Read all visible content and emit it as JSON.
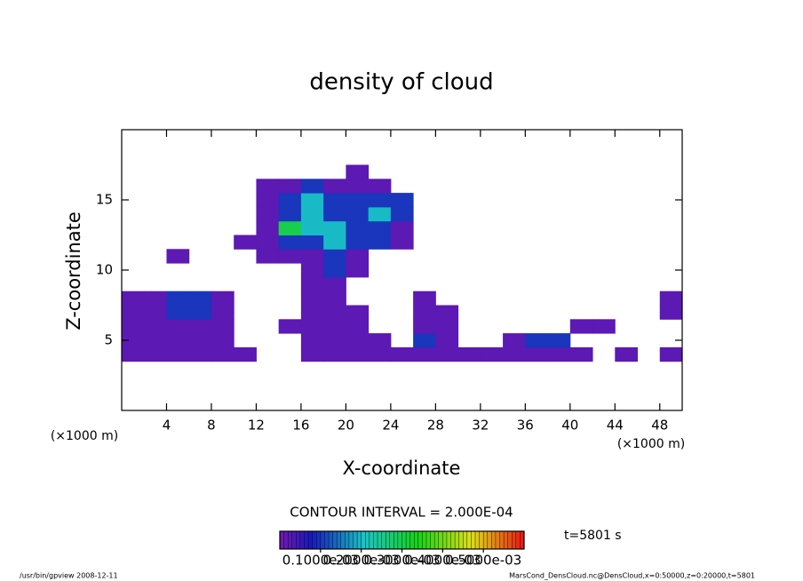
{
  "chart_data": {
    "type": "contour",
    "title": "density of cloud",
    "xlabel": "X-coordinate",
    "ylabel": "Z-coordinate",
    "xlabel_unit": "(×1000 m)",
    "ylabel_unit": "(×1000 m)",
    "xlim": [
      0,
      50
    ],
    "ylim": [
      0,
      20
    ],
    "xticks": [
      4,
      8,
      12,
      16,
      20,
      24,
      28,
      32,
      36,
      40,
      44,
      48
    ],
    "yticks": [
      5,
      10,
      15
    ],
    "colormap": "rainbow",
    "x": [
      1,
      3,
      5,
      7,
      9,
      11,
      13,
      15,
      17,
      19,
      21,
      23,
      25,
      27,
      29,
      31,
      33,
      35,
      37,
      39,
      41,
      43,
      45,
      47,
      49
    ],
    "y": [
      4,
      5,
      6,
      7,
      8,
      9,
      10,
      11,
      12,
      13,
      14,
      15,
      16,
      17
    ],
    "z": [
      [
        2e-05,
        2e-05,
        2e-05,
        2e-05,
        2e-05,
        2e-05,
        0,
        0,
        2e-05,
        2e-05,
        2e-05,
        2e-05,
        2e-05,
        2e-05,
        2e-05,
        2e-05,
        2e-05,
        2e-05,
        2e-05,
        2e-05,
        2e-05,
        0,
        2e-05,
        0,
        2e-05
      ],
      [
        2e-05,
        2e-05,
        2e-05,
        2e-05,
        2e-05,
        0,
        0,
        0,
        2e-05,
        2e-05,
        2e-05,
        2e-05,
        0,
        0.0001,
        2e-05,
        0,
        0,
        2e-05,
        0.0001,
        0.0001,
        0,
        0,
        0,
        0,
        0
      ],
      [
        2e-05,
        2e-05,
        2e-05,
        2e-05,
        2e-05,
        0,
        0,
        2e-05,
        2e-05,
        2e-05,
        2e-05,
        0,
        0,
        2e-05,
        2e-05,
        0,
        0,
        0,
        0,
        0,
        2e-05,
        2e-05,
        0,
        0,
        0
      ],
      [
        2e-05,
        2e-05,
        0.0001,
        0.0001,
        2e-05,
        0,
        0,
        0,
        2e-05,
        2e-05,
        2e-05,
        0,
        0,
        2e-05,
        2e-05,
        0,
        0,
        0,
        0,
        0,
        0,
        0,
        0,
        0,
        2e-05
      ],
      [
        2e-05,
        2e-05,
        0.0001,
        0.0001,
        2e-05,
        0,
        0,
        0,
        2e-05,
        2e-05,
        0,
        0,
        0,
        2e-05,
        0,
        0,
        0,
        0,
        0,
        0,
        0,
        0,
        0,
        0,
        2e-05
      ],
      [
        0,
        0,
        0,
        0,
        0,
        0,
        0,
        0,
        2e-05,
        2e-05,
        0,
        0,
        0,
        0,
        0,
        0,
        0,
        0,
        0,
        0,
        0,
        0,
        0,
        0,
        0
      ],
      [
        0,
        0,
        0,
        0,
        0,
        0,
        0,
        0,
        2e-05,
        0.0001,
        2e-05,
        0,
        0,
        0,
        0,
        0,
        0,
        0,
        0,
        0,
        0,
        0,
        0,
        0,
        0
      ],
      [
        0,
        0,
        2e-05,
        0,
        0,
        0,
        2e-05,
        2e-05,
        2e-05,
        0.0001,
        2e-05,
        0,
        0,
        0,
        0,
        0,
        0,
        0,
        0,
        0,
        0,
        0,
        0,
        0,
        0
      ],
      [
        0,
        0,
        0,
        0,
        0,
        2e-05,
        2e-05,
        0.0001,
        0.0001,
        0.0002,
        0.0001,
        0.0001,
        2e-05,
        0,
        0,
        0,
        0,
        0,
        0,
        0,
        0,
        0,
        0,
        0,
        0
      ],
      [
        0,
        0,
        0,
        0,
        0,
        0,
        2e-05,
        0.0003,
        0.0002,
        0.0002,
        0.0001,
        0.0001,
        2e-05,
        0,
        0,
        0,
        0,
        0,
        0,
        0,
        0,
        0,
        0,
        0,
        0
      ],
      [
        0,
        0,
        0,
        0,
        0,
        0,
        2e-05,
        0.0001,
        0.0002,
        0.0001,
        0.0001,
        0.0002,
        0.0001,
        0,
        0,
        0,
        0,
        0,
        0,
        0,
        0,
        0,
        0,
        0,
        0
      ],
      [
        0,
        0,
        0,
        0,
        0,
        0,
        2e-05,
        0.0001,
        0.0002,
        0.0001,
        0.0001,
        0.0001,
        0.0001,
        0,
        0,
        0,
        0,
        0,
        0,
        0,
        0,
        0,
        0,
        0,
        0
      ],
      [
        0,
        0,
        0,
        0,
        0,
        0,
        2e-05,
        2e-05,
        0.0001,
        2e-05,
        2e-05,
        2e-05,
        0,
        0,
        0,
        0,
        0,
        0,
        0,
        0,
        0,
        0,
        0,
        0,
        0
      ],
      [
        0,
        0,
        0,
        0,
        0,
        0,
        0,
        0,
        0,
        0,
        2e-05,
        0,
        0,
        0,
        0,
        0,
        0,
        0,
        0,
        0,
        0,
        0,
        0,
        0,
        0
      ]
    ],
    "contour_interval": "CONTOUR INTERVAL = 2.000E-04",
    "time_label": "t=5801 s",
    "colorbar": {
      "lim": [
        0,
        0.0006
      ],
      "ticks": [
        {
          "value": 0.0001,
          "label": "0.1000e-03"
        },
        {
          "value": 0.0002,
          "label": "0.2000e-03"
        },
        {
          "value": 0.0003,
          "label": "0.3000e-03"
        },
        {
          "value": 0.0004,
          "label": "0.4000e-03"
        },
        {
          "value": 0.0005,
          "label": "0.5000e-03"
        }
      ]
    },
    "footer_left": "/usr/bin/gpview   2008-12-11",
    "footer_right": "MarsCond_DensCloud.nc@DensCloud,x=0:50000,z=0:20000,t=5801"
  }
}
